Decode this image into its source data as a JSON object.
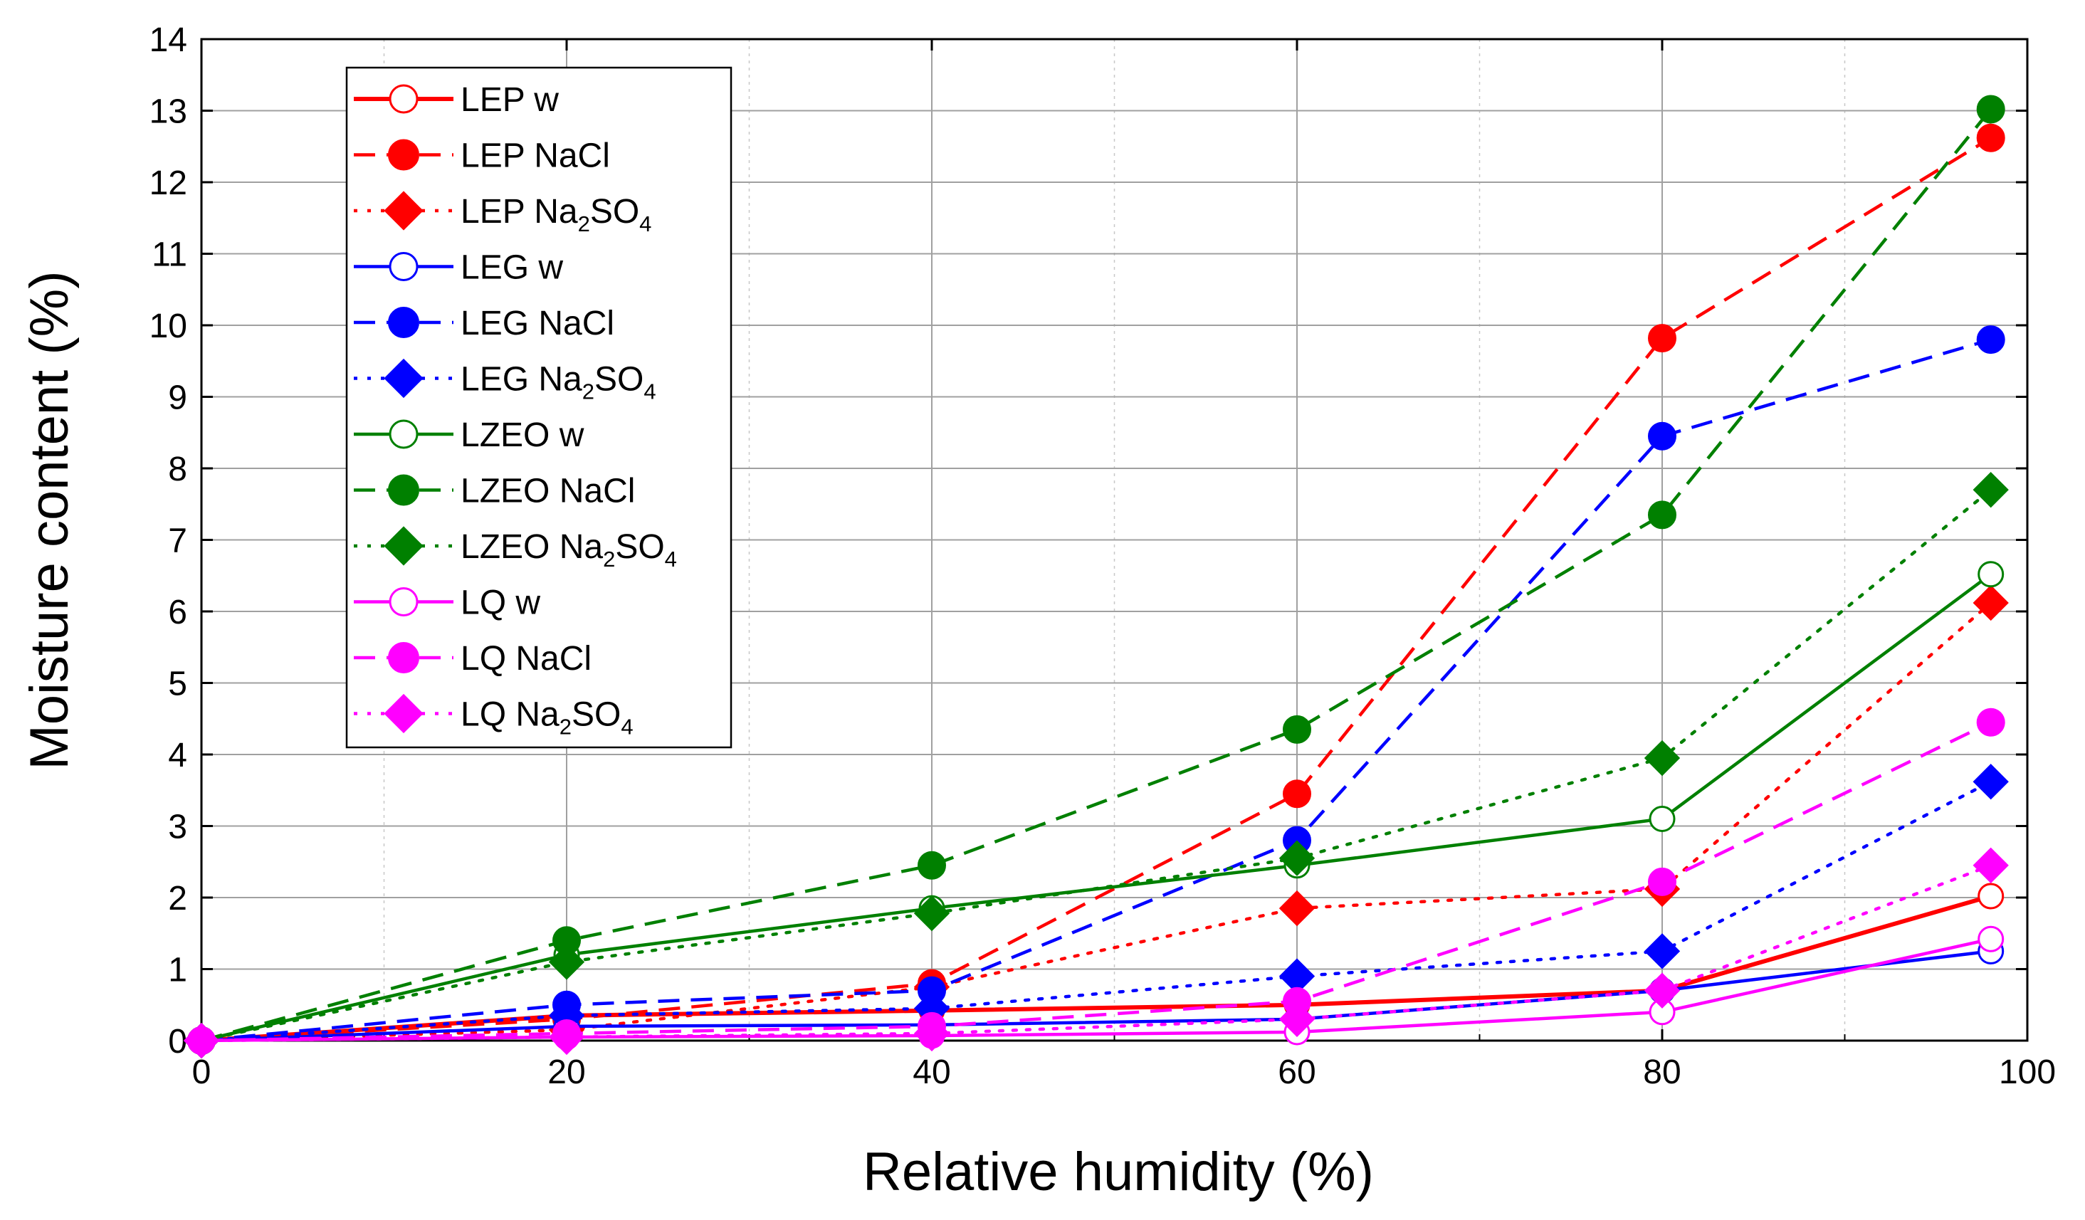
{
  "chart_data": {
    "type": "line",
    "title": "",
    "xlabel": "Relative humidity (%)",
    "ylabel": "Moisture content (%)",
    "xlim": [
      0,
      100
    ],
    "ylim": [
      0,
      14
    ],
    "xticks": [
      "0",
      "20",
      "40",
      "60",
      "80",
      "100"
    ],
    "yticks": [
      "0",
      "1",
      "2",
      "3",
      "4",
      "5",
      "6",
      "7",
      "8",
      "9",
      "10",
      "11",
      "12",
      "13",
      "14"
    ],
    "grid": true,
    "legend_position": "top-left",
    "x": [
      0,
      20,
      40,
      60,
      80,
      98
    ],
    "series": [
      {
        "name": "LEP w",
        "label_main": "LEP w",
        "label_sub": "",
        "label_tail": "",
        "color": "#ff0000",
        "dash": "solid",
        "marker": "circle-open",
        "values": [
          0,
          0.35,
          0.42,
          0.5,
          0.7,
          2.02
        ]
      },
      {
        "name": "LEP NaCl",
        "label_main": "LEP NaCl",
        "label_sub": "",
        "label_tail": "",
        "color": "#ff0000",
        "dash": "dash",
        "marker": "circle",
        "values": [
          0,
          0.3,
          0.8,
          3.45,
          9.82,
          12.62
        ]
      },
      {
        "name": "LEP Na2SO4",
        "label_main": "LEP Na",
        "label_sub": "2",
        "label_tail": "SO",
        "label_sub2": "4",
        "color": "#ff0000",
        "dash": "dot",
        "marker": "diamond",
        "values": [
          0,
          0.15,
          0.75,
          1.85,
          2.12,
          6.12
        ]
      },
      {
        "name": "LEG w",
        "label_main": "LEG w",
        "label_sub": "",
        "label_tail": "",
        "color": "#0000ff",
        "dash": "solid",
        "marker": "circle-open",
        "values": [
          0,
          0.2,
          0.22,
          0.3,
          0.7,
          1.25
        ]
      },
      {
        "name": "LEG NaCl",
        "label_main": "LEG NaCl",
        "label_sub": "",
        "label_tail": "",
        "color": "#0000ff",
        "dash": "dash",
        "marker": "circle",
        "values": [
          0,
          0.5,
          0.7,
          2.8,
          8.45,
          9.8
        ]
      },
      {
        "name": "LEG Na2SO4",
        "label_main": "LEG Na",
        "label_sub": "2",
        "label_tail": "SO",
        "label_sub2": "4",
        "color": "#0000ff",
        "dash": "dot",
        "marker": "diamond",
        "values": [
          0,
          0.35,
          0.45,
          0.9,
          1.25,
          3.62
        ]
      },
      {
        "name": "LZEO w",
        "label_main": "LZEO w",
        "label_sub": "",
        "label_tail": "",
        "color": "#008000",
        "dash": "solid",
        "marker": "circle-open",
        "values": [
          0,
          1.2,
          1.85,
          2.45,
          3.1,
          6.52
        ]
      },
      {
        "name": "LZEO NaCl",
        "label_main": "LZEO NaCl",
        "label_sub": "",
        "label_tail": "",
        "color": "#008000",
        "dash": "dash",
        "marker": "circle",
        "values": [
          0,
          1.4,
          2.45,
          4.35,
          7.35,
          13.02
        ]
      },
      {
        "name": "LZEO Na2SO4",
        "label_main": "LZEO Na",
        "label_sub": "2",
        "label_tail": "SO",
        "label_sub2": "4",
        "color": "#008000",
        "dash": "dot",
        "marker": "diamond",
        "values": [
          0,
          1.1,
          1.78,
          2.55,
          3.95,
          7.7
        ]
      },
      {
        "name": "LQ w",
        "label_main": "LQ w",
        "label_sub": "",
        "label_tail": "",
        "color": "#ff00ff",
        "dash": "solid",
        "marker": "circle-open",
        "values": [
          0,
          0.05,
          0.07,
          0.12,
          0.4,
          1.42
        ]
      },
      {
        "name": "LQ NaCl",
        "label_main": "LQ NaCl",
        "label_sub": "",
        "label_tail": "",
        "color": "#ff00ff",
        "dash": "dash",
        "marker": "circle",
        "values": [
          0,
          0.1,
          0.2,
          0.55,
          2.22,
          4.45
        ]
      },
      {
        "name": "LQ Na2SO4",
        "label_main": "LQ Na",
        "label_sub": "2",
        "label_tail": "SO",
        "label_sub2": "4",
        "color": "#ff00ff",
        "dash": "dot",
        "marker": "diamond",
        "values": [
          0,
          0.05,
          0.1,
          0.3,
          0.7,
          2.45
        ]
      }
    ]
  }
}
